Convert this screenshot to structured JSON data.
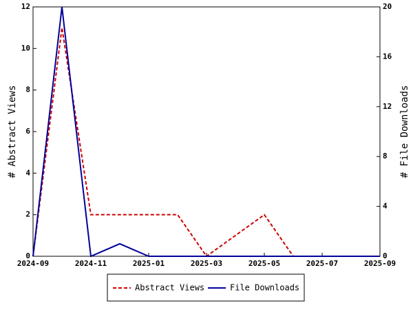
{
  "chart_data": {
    "type": "line",
    "x": [
      "2024-09",
      "2024-10",
      "2024-11",
      "2024-12",
      "2025-01",
      "2025-02",
      "2025-03",
      "2025-04",
      "2025-05",
      "2025-06",
      "2025-07",
      "2025-08",
      "2025-09"
    ],
    "xlim": [
      "2024-09",
      "2025-09"
    ],
    "xticks": [
      "2024-09",
      "2024-11",
      "2025-01",
      "2025-03",
      "2025-05",
      "2025-07",
      "2025-09"
    ],
    "ylabel": "# Abstract Views",
    "y2label": "# File Downloads",
    "ylim": [
      0,
      12
    ],
    "yticks": [
      0,
      2,
      4,
      6,
      8,
      10,
      12
    ],
    "y2lim": [
      0,
      20
    ],
    "y2ticks": [
      0,
      4,
      8,
      12,
      16,
      20
    ],
    "legend": "bottom",
    "series": [
      {
        "name": "Abstract Views",
        "color": "#cc0000",
        "dash": true,
        "values": [
          0,
          11,
          2,
          2,
          2,
          2,
          0,
          1,
          2,
          0,
          0,
          0,
          0
        ]
      },
      {
        "name": "File Downloads",
        "color": "#000099",
        "dash": false,
        "axis": "y2",
        "values": [
          0,
          20,
          0,
          1,
          0,
          0,
          0,
          0,
          0,
          0,
          0,
          0,
          0
        ]
      }
    ]
  }
}
